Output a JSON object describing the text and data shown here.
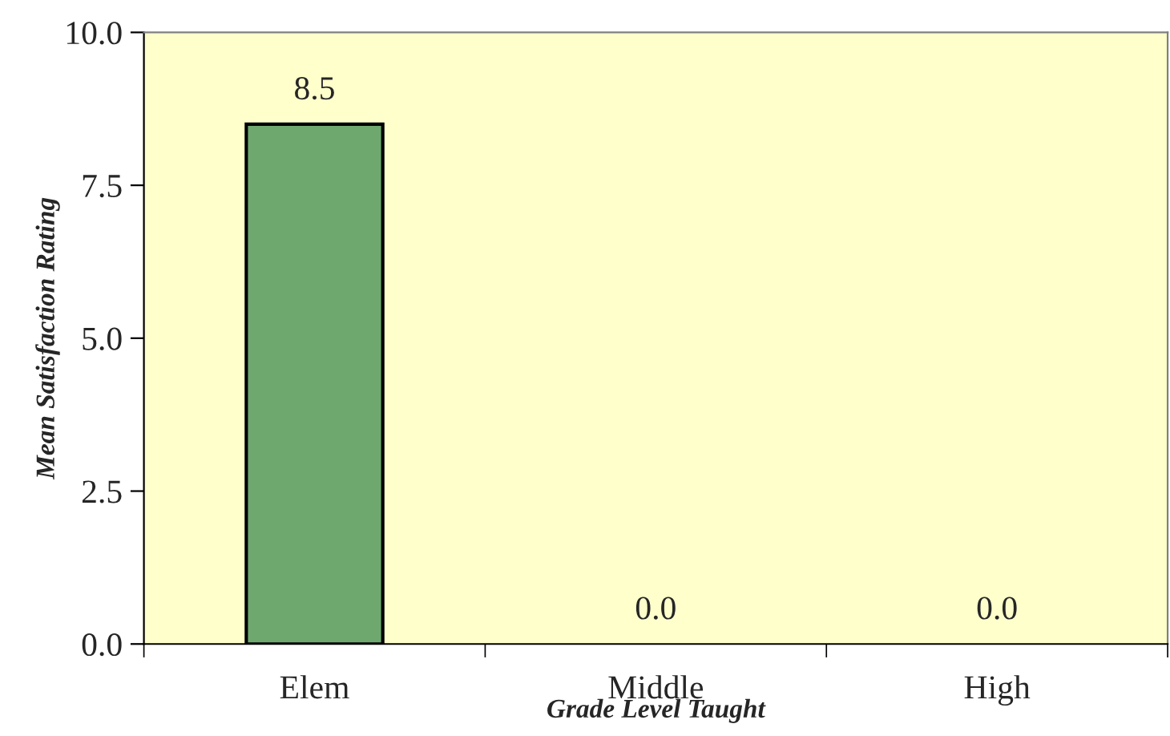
{
  "chart_data": {
    "type": "bar",
    "xlabel": "Grade Level Taught",
    "ylabel": "Mean Satisfaction Rating",
    "categories": [
      "Elem",
      "Middle",
      "High"
    ],
    "series": [
      {
        "color": "#6fa86f",
        "values": [
          8.5,
          0.0,
          0.0
        ],
        "value_labels": [
          "8.5",
          "0.0",
          "0.0"
        ]
      }
    ],
    "ylim": [
      0,
      10
    ],
    "yticks": [
      {
        "value": 0,
        "label": "0.0"
      },
      {
        "value": 2.5,
        "label": "2.5"
      },
      {
        "value": 5,
        "label": "5.0"
      },
      {
        "value": 7.5,
        "label": "7.5"
      },
      {
        "value": 10,
        "label": "10.0"
      }
    ],
    "grid": false,
    "legend": false
  }
}
